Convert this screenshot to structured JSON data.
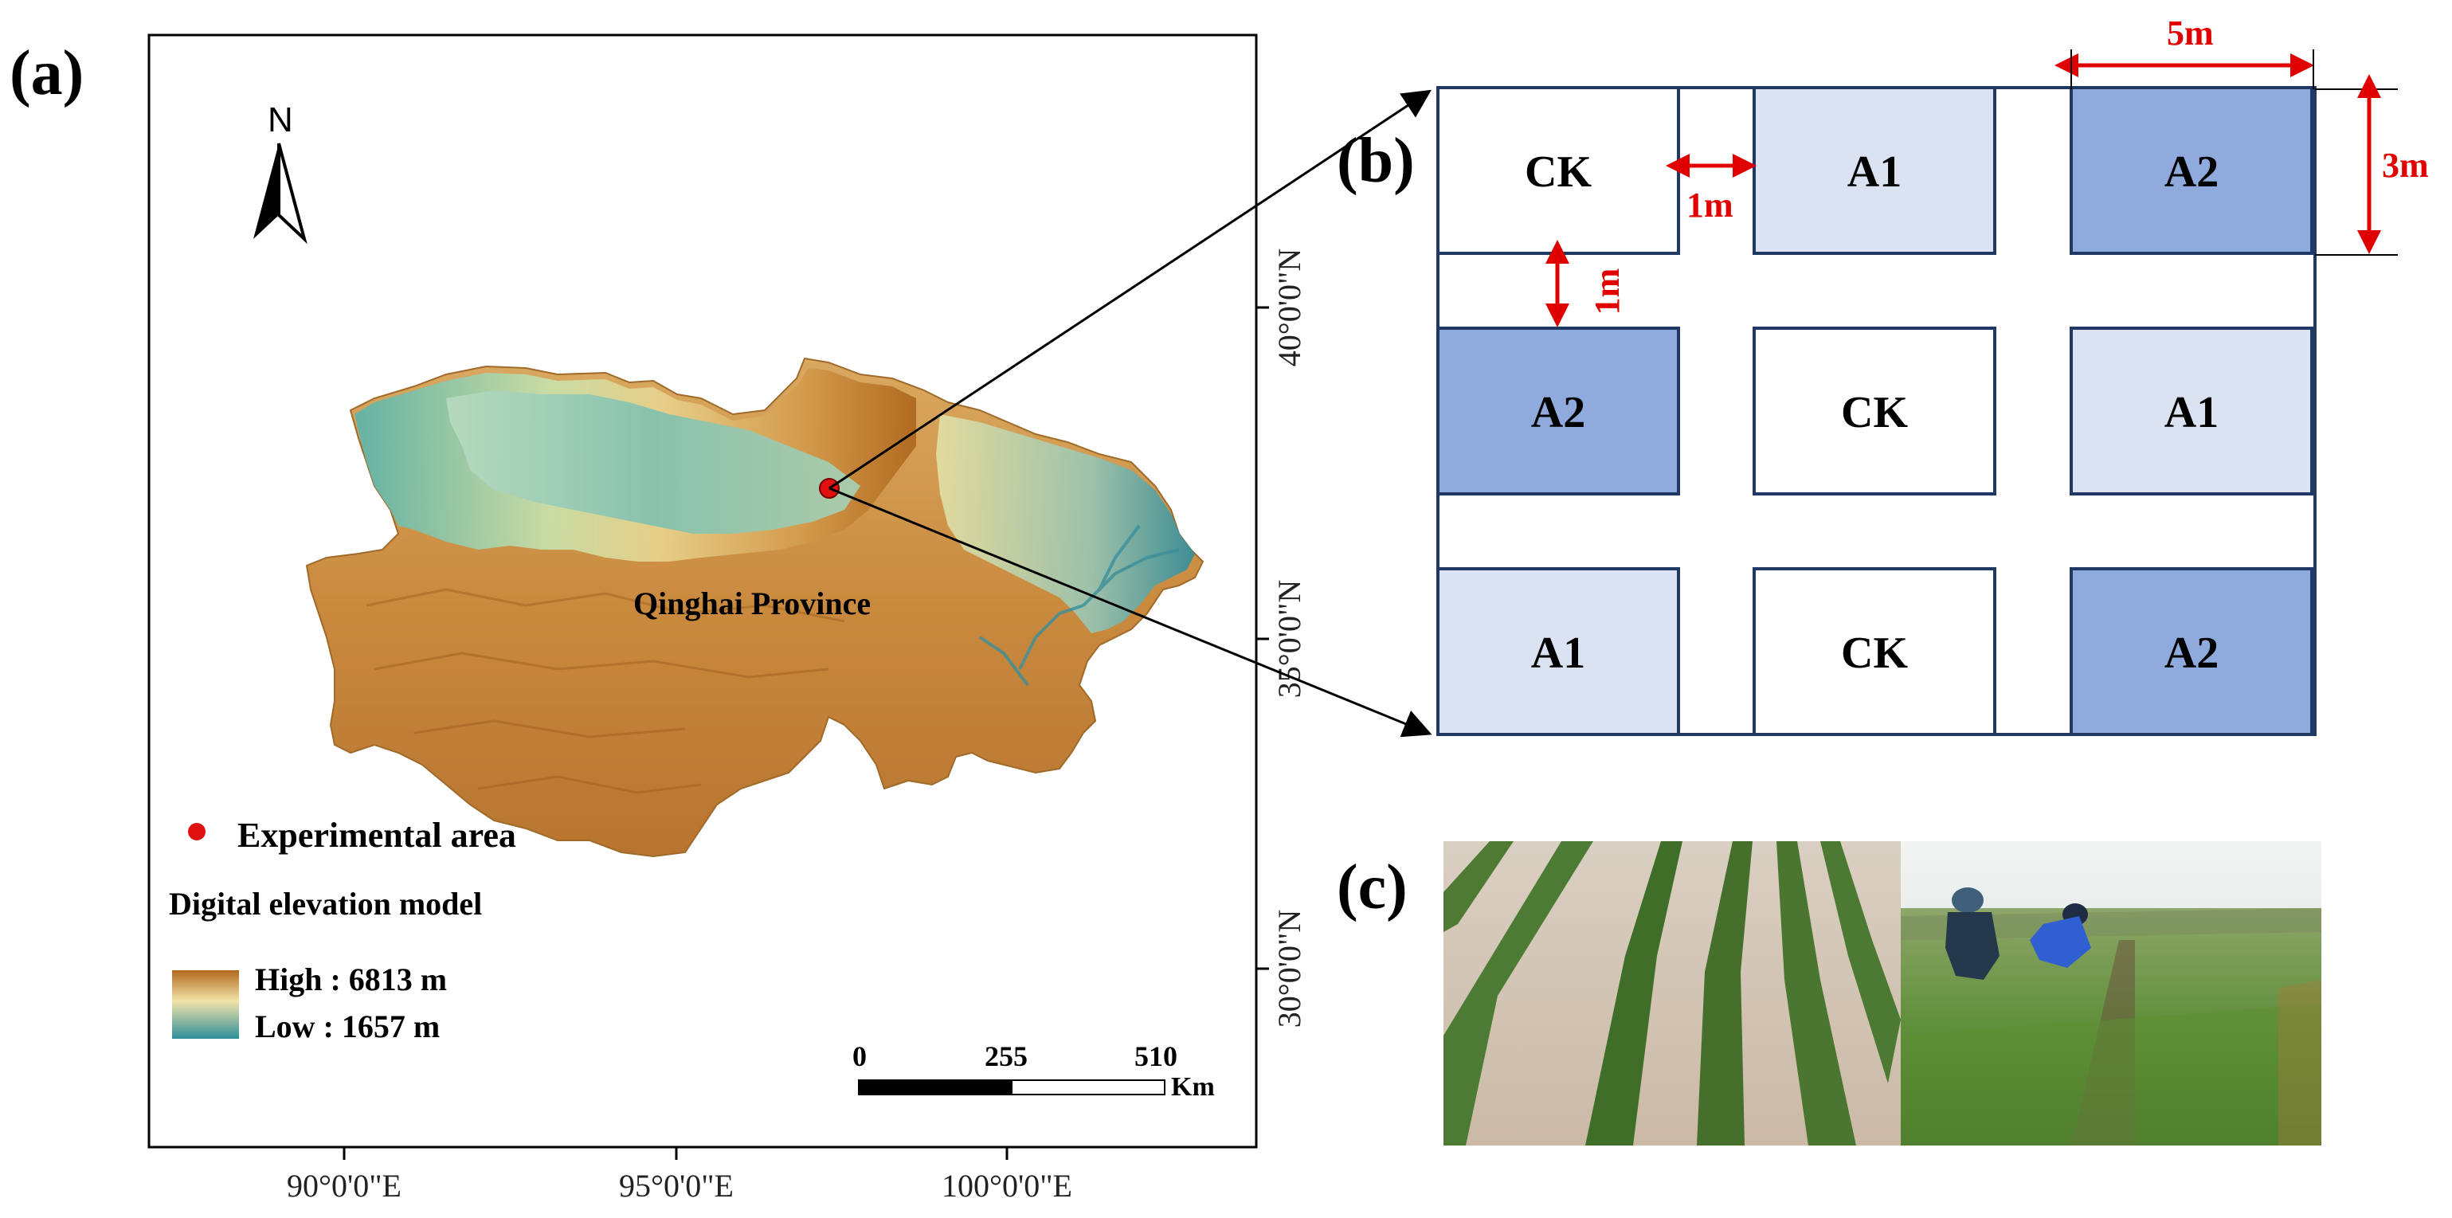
{
  "panels": {
    "a": {
      "label": "(a)"
    },
    "b": {
      "label": "(b)"
    },
    "c": {
      "label": "(c)"
    }
  },
  "map": {
    "north_label": "N",
    "region_label": "Qinghai Province",
    "legend": {
      "point_label": "Experimental area",
      "dem_title": "Digital elevation model",
      "high_label": "High : 6813 m",
      "low_label": "Low : 1657 m",
      "high_color": "#b0681e",
      "low_color": "#2e8f9a",
      "point_color": "#e01010"
    },
    "scale_bar": {
      "ticks": [
        "0",
        "255",
        "510"
      ],
      "unit": "Km"
    },
    "x_ticks": [
      "90°0'0\"E",
      "95°0'0\"E",
      "100°0'0\"E"
    ],
    "y_ticks": [
      "40°0'0\"N",
      "35°0'0\"N",
      "30°0'0\"N"
    ]
  },
  "plot_layout": {
    "rows": [
      [
        {
          "label": "CK",
          "fill": "#ffffff"
        },
        {
          "label": "A1",
          "fill": "#dbe2f1"
        },
        {
          "label": "A2",
          "fill": "#8faadc"
        }
      ],
      [
        {
          "label": "A2",
          "fill": "#8faadc"
        },
        {
          "label": "CK",
          "fill": "#ffffff"
        },
        {
          "label": "A1",
          "fill": "#dbe2f1"
        }
      ],
      [
        {
          "label": "A1",
          "fill": "#dbe2f1"
        },
        {
          "label": "CK",
          "fill": "#ffffff"
        },
        {
          "label": "A2",
          "fill": "#8faadc"
        }
      ]
    ],
    "dimensions": {
      "width": "5m",
      "height": "3m",
      "gap_horizontal": "1m",
      "gap_vertical": "1m"
    },
    "border_color": "#1f3864",
    "dimension_color": "#e00000"
  },
  "photos": {
    "left": "field-rows-photo",
    "right": "field-workers-photo"
  }
}
